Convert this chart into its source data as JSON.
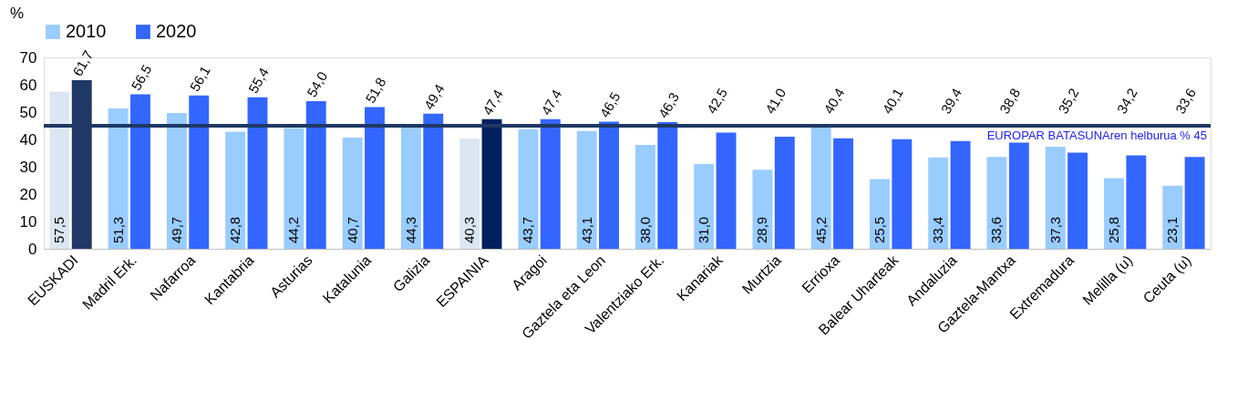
{
  "chart_data": {
    "type": "bar",
    "ylabel": "%",
    "legend": "top",
    "categories": [
      "EUSKADI",
      "Madril Erk.",
      "Nafarroa",
      "Kantabria",
      "Asturias",
      "Katalunia",
      "Galizia",
      "ESPAINIA",
      "Aragoi",
      "Gaztela eta Leon",
      "Valentziako Erk.",
      "Kanariak",
      "Murtzia",
      "Errioxa",
      "Balear Uharteak",
      "Andaluzia",
      "Gaztela-Mantxa",
      "Extremadura",
      "Melilla (u)",
      "Ceuta (u)"
    ],
    "ylim": [
      0,
      70
    ],
    "yticks": [
      0,
      10,
      20,
      30,
      40,
      50,
      60,
      70
    ],
    "series": [
      {
        "name": "2010",
        "color": "#99ccff",
        "colors": [
          "#dce6f2",
          "#99ccff",
          "#99ccff",
          "#99ccff",
          "#99ccff",
          "#99ccff",
          "#99ccff",
          "#dce6f2",
          "#99ccff",
          "#99ccff",
          "#99ccff",
          "#99ccff",
          "#99ccff",
          "#99ccff",
          "#99ccff",
          "#99ccff",
          "#99ccff",
          "#99ccff",
          "#99ccff",
          "#99ccff"
        ],
        "values": [
          57.5,
          51.3,
          49.7,
          42.8,
          44.2,
          40.7,
          44.3,
          40.3,
          43.7,
          43.1,
          38.0,
          31.0,
          28.9,
          45.2,
          25.5,
          33.4,
          33.6,
          37.3,
          25.8,
          23.1
        ],
        "value_labels": [
          "57,5",
          "51,3",
          "49,7",
          "42,8",
          "44,2",
          "40,7",
          "44,3",
          "40,3",
          "43,7",
          "43,1",
          "38,0",
          "31,0",
          "28,9",
          "45,2",
          "25,5",
          "33,4",
          "33,6",
          "37,3",
          "25,8",
          "23,1"
        ]
      },
      {
        "name": "2020",
        "color": "#3366ff",
        "colors": [
          "#1f3864",
          "#3366ff",
          "#3366ff",
          "#3366ff",
          "#3366ff",
          "#3366ff",
          "#3366ff",
          "#002060",
          "#3366ff",
          "#3366ff",
          "#3366ff",
          "#3366ff",
          "#3366ff",
          "#3366ff",
          "#3366ff",
          "#3366ff",
          "#3366ff",
          "#3366ff",
          "#3366ff",
          "#3366ff"
        ],
        "values": [
          61.7,
          56.5,
          56.1,
          55.4,
          54.0,
          51.8,
          49.4,
          47.4,
          47.4,
          46.5,
          46.3,
          42.5,
          41.0,
          40.4,
          40.1,
          39.4,
          38.8,
          35.2,
          34.2,
          33.6
        ],
        "value_labels": [
          "61,7",
          "56,5",
          "56,1",
          "55,4",
          "54,0",
          "51,8",
          "49,4",
          "47,4",
          "47,4",
          "46,5",
          "46,3",
          "42,5",
          "41,0",
          "40,4",
          "40,1",
          "39,4",
          "38,8",
          "35,2",
          "34,2",
          "33,6"
        ]
      }
    ],
    "ref_lines": [
      {
        "axis": "y",
        "value": 45,
        "label": "EUROPAR BATASUNAren helburua % 45",
        "color": "#1f3864"
      }
    ]
  }
}
